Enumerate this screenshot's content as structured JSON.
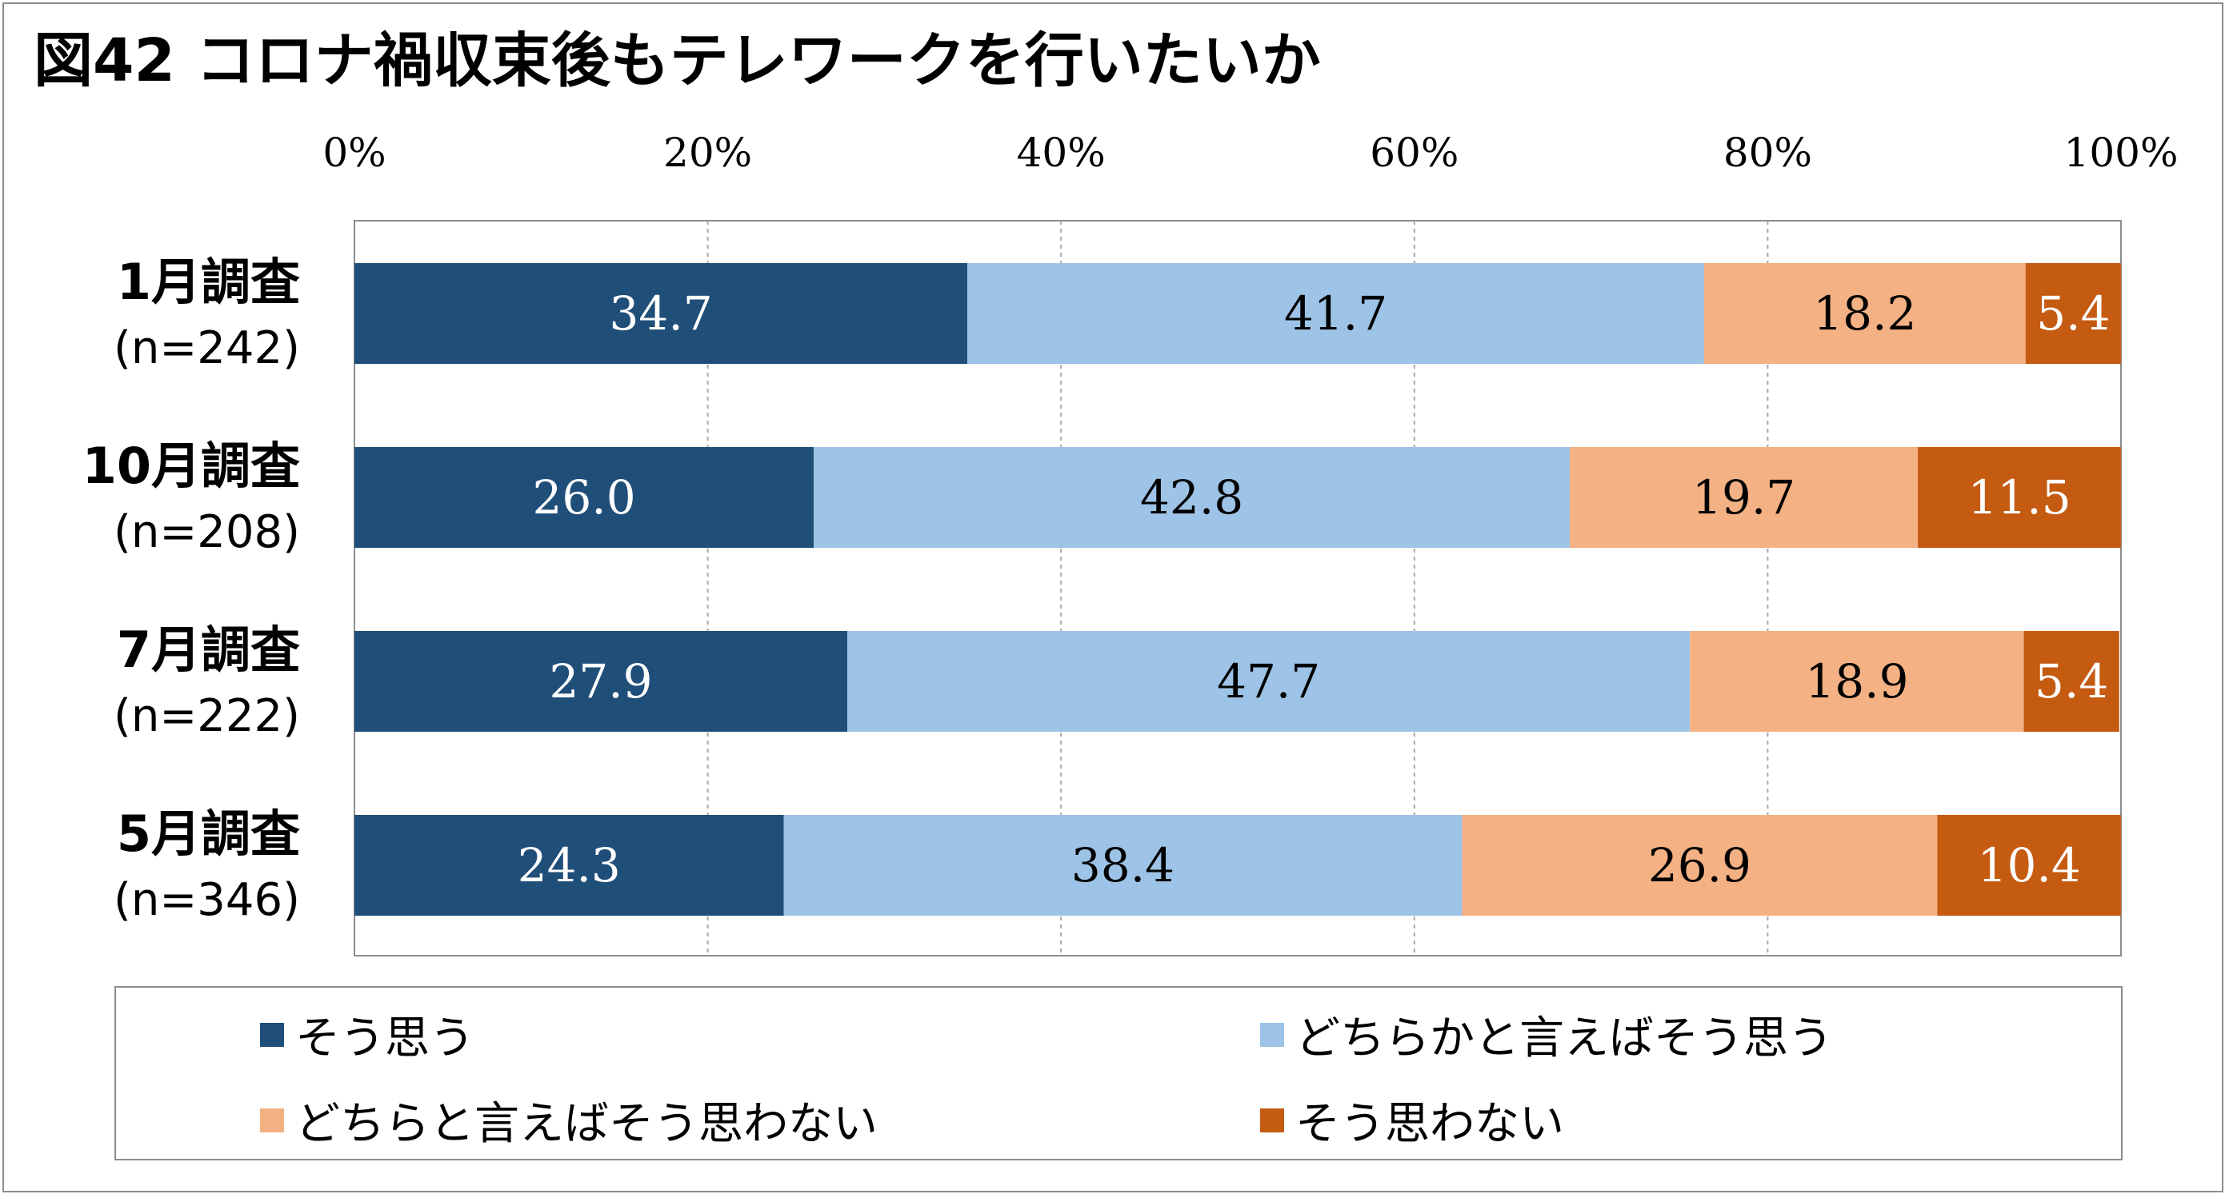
{
  "title": "図42 コロナ禍収束後もテレワークを行いたいか",
  "chart_data": {
    "type": "bar",
    "orientation": "horizontal",
    "stacked": true,
    "title": "図42 コロナ禍収束後もテレワークを行いたいか",
    "xlim": [
      0,
      100
    ],
    "x_ticks": [
      "0%",
      "20%",
      "40%",
      "60%",
      "80%",
      "100%"
    ],
    "x_tick_values": [
      0,
      20,
      40,
      60,
      80,
      100
    ],
    "grid": true,
    "legend_position": "bottom",
    "categories": [
      {
        "label": "1月調査",
        "sub": "(n=242)"
      },
      {
        "label": "10月調査",
        "sub": "(n=208)"
      },
      {
        "label": "7月調査",
        "sub": "(n=222)"
      },
      {
        "label": "5月調査",
        "sub": "(n=346)"
      }
    ],
    "series": [
      {
        "name": "そう思う",
        "color": "#1f4e79",
        "label_color": "#ffffff",
        "values": [
          34.7,
          26.0,
          27.9,
          24.3
        ],
        "labels": [
          "34.7",
          "26.0",
          "27.9",
          "24.3"
        ]
      },
      {
        "name": "どちらかと言えばそう思う",
        "color": "#9dc3e6",
        "label_color": "#000000",
        "values": [
          41.7,
          42.8,
          47.7,
          38.4
        ],
        "labels": [
          "41.7",
          "42.8",
          "47.7",
          "38.4"
        ]
      },
      {
        "name": "どちらと言えばそう思わない",
        "color": "#f4b183",
        "label_color": "#000000",
        "values": [
          18.2,
          19.7,
          18.9,
          26.9
        ],
        "labels": [
          "18.2",
          "19.7",
          "18.9",
          "26.9"
        ]
      },
      {
        "name": "そう思わない",
        "color": "#c55a11",
        "label_color": "#ffffff",
        "values": [
          5.4,
          11.5,
          5.4,
          10.4
        ],
        "labels": [
          "5.4",
          "11.5",
          "5.4",
          "10.4"
        ]
      }
    ]
  }
}
